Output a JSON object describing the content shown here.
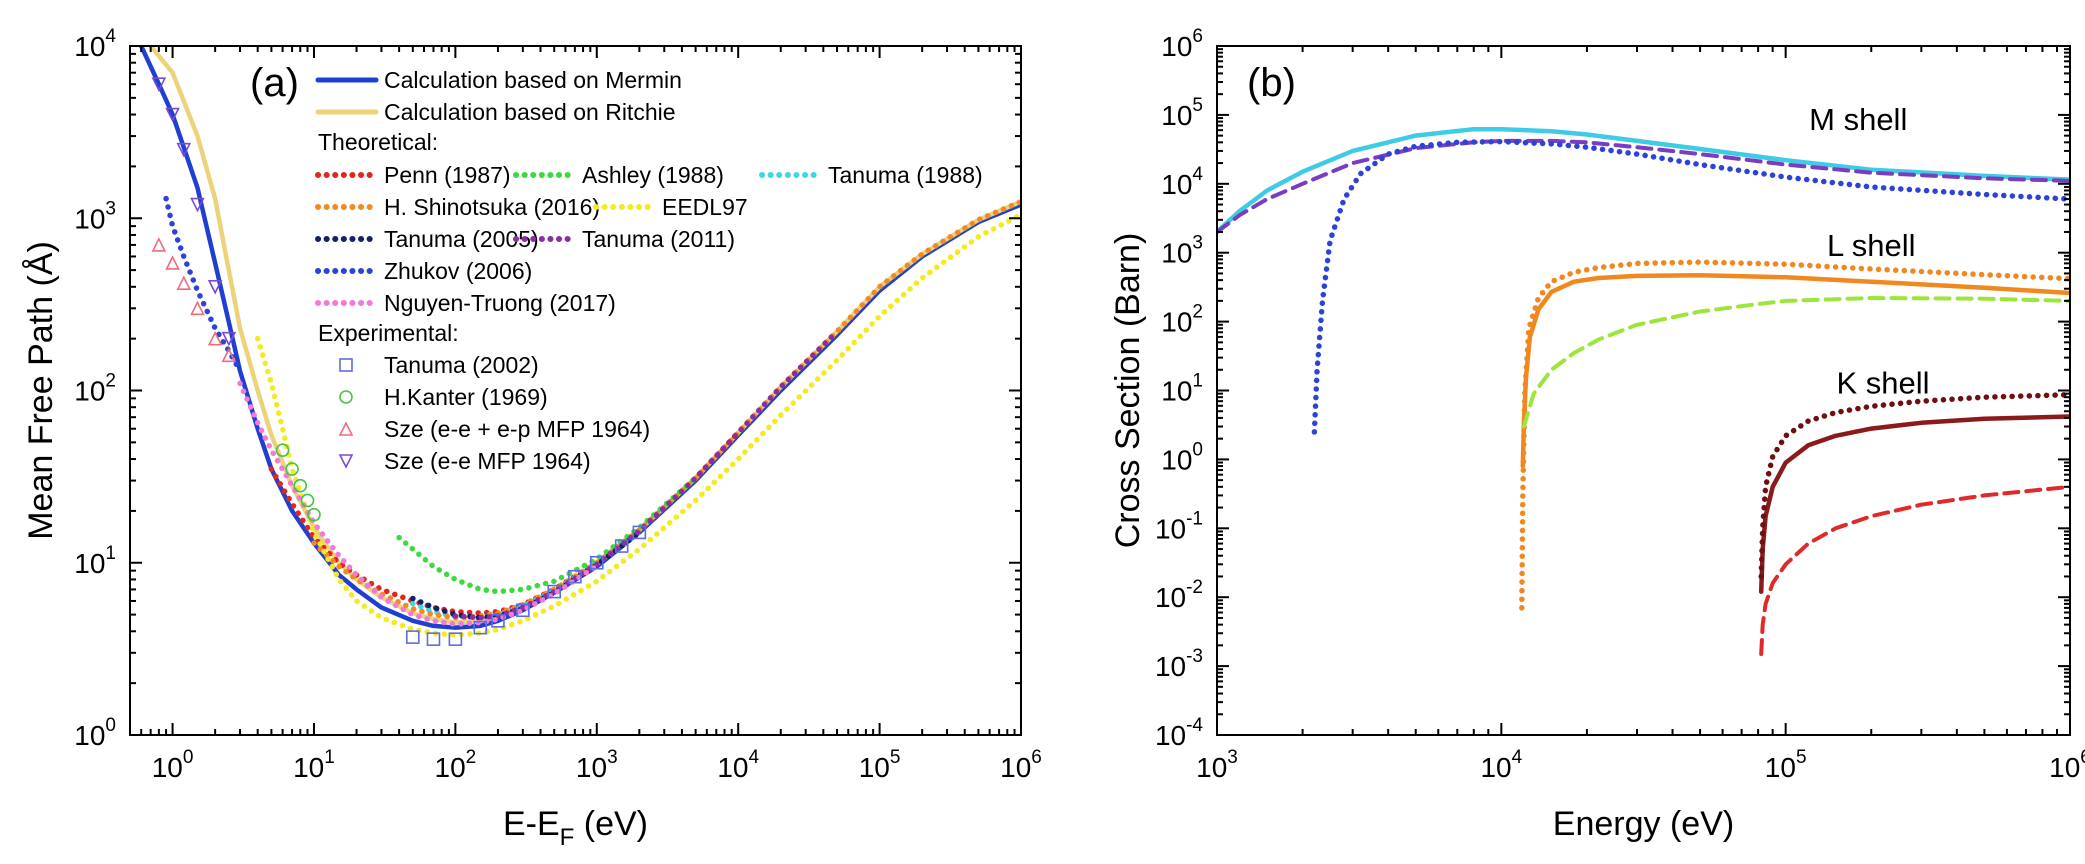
{
  "chart_data": [
    {
      "type": "line",
      "panel_label": "(a)",
      "xlabel": "E-E",
      "xlabel_sub": "F",
      "xlabel_unit": " (eV)",
      "ylabel": "Mean Free Path (Å)",
      "xscale": "log",
      "yscale": "log",
      "xlim": [
        0.5,
        1000000
      ],
      "ylim": [
        1,
        10000
      ],
      "x_ticks": [
        {
          "base": "10",
          "exp": "0"
        },
        {
          "base": "10",
          "exp": "1"
        },
        {
          "base": "10",
          "exp": "2"
        },
        {
          "base": "10",
          "exp": "3"
        },
        {
          "base": "10",
          "exp": "4"
        },
        {
          "base": "10",
          "exp": "5"
        },
        {
          "base": "10",
          "exp": "6"
        }
      ],
      "y_ticks": [
        {
          "base": "10",
          "exp": "0"
        },
        {
          "base": "10",
          "exp": "1"
        },
        {
          "base": "10",
          "exp": "2"
        },
        {
          "base": "10",
          "exp": "3"
        },
        {
          "base": "10",
          "exp": "4"
        }
      ],
      "legend_headers": {
        "theoretical": "Theoretical:",
        "experimental": "Experimental:"
      },
      "series": [
        {
          "name": "Calculation based on Mermin",
          "style": "solid",
          "color": "#1f3fd1",
          "group": "calc",
          "x": [
            0.6,
            0.8,
            1,
            1.5,
            2,
            2.5,
            3,
            4,
            5,
            7,
            10,
            15,
            20,
            30,
            50,
            70,
            100,
            150,
            200,
            300,
            500,
            1000,
            2000,
            5000,
            10000,
            20000,
            50000,
            100000,
            200000,
            500000,
            1000000
          ],
          "y": [
            10000,
            6000,
            4000,
            1500,
            550,
            250,
            130,
            60,
            35,
            20,
            13,
            8.5,
            7,
            5.5,
            4.6,
            4.3,
            4.2,
            4.3,
            4.6,
            5.3,
            6.7,
            9.5,
            15,
            30,
            55,
            100,
            210,
            380,
            600,
            950,
            1200
          ]
        },
        {
          "name": "Calculation based on Ritchie",
          "style": "solid",
          "color": "#ecd37a",
          "group": "calc",
          "x": [
            0.7,
            1,
            1.5,
            2,
            2.5,
            3,
            4,
            5,
            7,
            10,
            15,
            20,
            30,
            50,
            70,
            100,
            150,
            200,
            300,
            500,
            1000,
            2000,
            5000,
            10000,
            20000,
            50000,
            100000,
            200000,
            500000,
            1000000
          ],
          "y": [
            10000,
            7000,
            3000,
            1300,
            500,
            230,
            100,
            55,
            28,
            16,
            10,
            8,
            6.3,
            5.1,
            4.7,
            4.5,
            4.6,
            4.9,
            5.5,
            6.9,
            9.8,
            15.5,
            31,
            57,
            105,
            220,
            400,
            620,
            980,
            1250
          ]
        },
        {
          "name": "Penn (1987)",
          "style": "dotted",
          "color": "#e0261f",
          "group": "theoretical",
          "x": [
            5,
            7,
            10,
            15,
            20,
            30,
            50,
            70,
            100,
            150,
            200,
            300,
            500,
            1000,
            2000,
            5000,
            10000
          ],
          "y": [
            35,
            22,
            14,
            10,
            8.5,
            7,
            6,
            5.5,
            5.2,
            5.1,
            5.2,
            5.7,
            7,
            10,
            15.5,
            31,
            57
          ]
        },
        {
          "name": "Ashley (1988)",
          "style": "dotted",
          "color": "#3ed93e",
          "group": "theoretical",
          "x": [
            40,
            50,
            70,
            100,
            150,
            200,
            300,
            500,
            700,
            1000,
            2000,
            5000
          ],
          "y": [
            14,
            12,
            9.5,
            8,
            7,
            6.8,
            7,
            7.8,
            9,
            10.5,
            16,
            31
          ]
        },
        {
          "name": "Tanuma (1988)",
          "style": "dotted",
          "color": "#3fd6e8",
          "group": "theoretical",
          "x": [
            50,
            70,
            100,
            150,
            200,
            300,
            500,
            1000,
            2000
          ],
          "y": [
            5.8,
            5.2,
            4.9,
            4.8,
            5.0,
            5.6,
            6.9,
            9.8,
            15
          ]
        },
        {
          "name": "H. Shinotsuka (2016)",
          "style": "dotted",
          "color": "#f08a24",
          "group": "theoretical",
          "x": [
            10,
            15,
            20,
            30,
            50,
            70,
            100,
            150,
            200,
            300,
            500,
            1000,
            2000,
            5000,
            10000,
            20000,
            50000,
            100000,
            200000,
            500000,
            1000000
          ],
          "y": [
            13,
            9.5,
            8,
            6.6,
            5.4,
            5,
            4.8,
            4.9,
            5.1,
            5.7,
            7,
            10,
            15.5,
            31,
            57,
            105,
            220,
            400,
            620,
            980,
            1250
          ]
        },
        {
          "name": "EEDL97",
          "style": "dotted",
          "color": "#f5ea22",
          "group": "theoretical",
          "x": [
            4,
            5,
            6,
            7,
            10,
            15,
            20,
            30,
            50,
            70,
            100,
            150,
            200,
            300,
            500,
            1000,
            2000,
            5000,
            10000,
            20000,
            50000,
            100000,
            200000,
            500000,
            1000000
          ],
          "y": [
            200,
            110,
            60,
            35,
            15,
            8,
            6,
            4.8,
            4.1,
            3.9,
            3.8,
            3.9,
            4.1,
            4.6,
            5.6,
            7.8,
            12,
            23,
            40,
            72,
            150,
            270,
            450,
            780,
            1050
          ]
        },
        {
          "name": "Tanuma (2005)",
          "style": "dotted",
          "color": "#141f6e",
          "group": "theoretical",
          "x": [
            50,
            70,
            100,
            150,
            200,
            300,
            500,
            1000,
            2000
          ],
          "y": [
            6.2,
            5.5,
            5.0,
            4.8,
            4.9,
            5.4,
            6.7,
            9.7,
            15
          ]
        },
        {
          "name": "Tanuma (2011)",
          "style": "dotted",
          "color": "#8a2fa3",
          "group": "theoretical",
          "x": [
            100,
            150,
            200,
            300,
            500,
            1000,
            2000,
            5000,
            10000,
            20000,
            50000
          ],
          "y": [
            4.9,
            4.8,
            4.9,
            5.5,
            6.8,
            9.8,
            15.3,
            31,
            57,
            105,
            220
          ]
        },
        {
          "name": "Zhukov (2006)",
          "style": "dotted",
          "color": "#2b43d8",
          "group": "theoretical",
          "x": [
            0.9,
            1,
            1.2,
            1.5,
            2,
            2.5,
            3
          ],
          "y": [
            1300,
            900,
            600,
            380,
            230,
            170,
            130
          ]
        },
        {
          "name": "Nguyen-Truong (2017)",
          "style": "dotted",
          "color": "#f07ad9",
          "group": "theoretical",
          "x": [
            3,
            4,
            5,
            7,
            10,
            15,
            20,
            30,
            50,
            70,
            100,
            150,
            200,
            300,
            500,
            1000
          ],
          "y": [
            110,
            65,
            45,
            28,
            17,
            11,
            8.5,
            6.3,
            5,
            4.6,
            4.4,
            4.5,
            4.7,
            5.3,
            6.6,
            9.6
          ]
        },
        {
          "name": "Tanuma (2002)",
          "style": "marker",
          "marker": "square",
          "color": "#5a6ee0",
          "group": "experimental",
          "x": [
            50,
            70,
            100,
            150,
            200,
            300,
            500,
            700,
            1000,
            1500,
            2000
          ],
          "y": [
            3.7,
            3.6,
            3.6,
            4.2,
            4.6,
            5.3,
            6.8,
            8.3,
            10,
            12.5,
            15
          ]
        },
        {
          "name": "H.Kanter (1969)",
          "style": "marker",
          "marker": "circle",
          "color": "#45c448",
          "group": "experimental",
          "x": [
            6,
            7,
            8,
            9,
            10
          ],
          "y": [
            45,
            35,
            28,
            23,
            19
          ]
        },
        {
          "name": "Sze (e-e + e-p MFP 1964)",
          "style": "marker",
          "marker": "triangle-up",
          "color": "#ef6b7c",
          "group": "experimental",
          "x": [
            0.8,
            1,
            1.2,
            1.5,
            2,
            2.5
          ],
          "y": [
            700,
            550,
            420,
            300,
            200,
            160
          ]
        },
        {
          "name": "Sze (e-e MFP 1964)",
          "style": "marker",
          "marker": "triangle-down",
          "color": "#7a4bd0",
          "group": "experimental",
          "x": [
            0.8,
            1,
            1.2,
            1.5,
            2,
            2.5
          ],
          "y": [
            6000,
            4000,
            2500,
            1200,
            400,
            200
          ]
        }
      ]
    },
    {
      "type": "line",
      "panel_label": "(b)",
      "xlabel": "Energy (eV)",
      "ylabel": "Cross Section (Barn)",
      "xscale": "log",
      "yscale": "log",
      "xlim": [
        1000,
        1000000
      ],
      "ylim": [
        0.0001,
        1000000
      ],
      "x_ticks": [
        {
          "base": "10",
          "exp": "3"
        },
        {
          "base": "10",
          "exp": "4"
        },
        {
          "base": "10",
          "exp": "5"
        },
        {
          "base": "10",
          "exp": "6"
        }
      ],
      "y_ticks": [
        {
          "base": "10",
          "exp": "-4"
        },
        {
          "base": "10",
          "exp": "-3"
        },
        {
          "base": "10",
          "exp": "-2"
        },
        {
          "base": "10",
          "exp": "-1"
        },
        {
          "base": "10",
          "exp": "0"
        },
        {
          "base": "10",
          "exp": "1"
        },
        {
          "base": "10",
          "exp": "2"
        },
        {
          "base": "10",
          "exp": "3"
        },
        {
          "base": "10",
          "exp": "4"
        },
        {
          "base": "10",
          "exp": "5"
        },
        {
          "base": "10",
          "exp": "6"
        }
      ],
      "annotations": [
        {
          "text": "M shell",
          "x": 180000,
          "y": 60000
        },
        {
          "text": "L shell",
          "x": 200000,
          "y": 900
        },
        {
          "text": "K shell",
          "x": 220000,
          "y": 9
        }
      ],
      "series": [
        {
          "style": "solid",
          "color": "#3fcbe6",
          "x": [
            1000,
            1200,
            1500,
            2000,
            3000,
            5000,
            8000,
            10000,
            15000,
            20000,
            30000,
            50000,
            100000,
            200000,
            500000,
            1000000
          ],
          "y": [
            2000,
            4000,
            8000,
            15000,
            30000,
            50000,
            62000,
            62000,
            58000,
            52000,
            42000,
            32000,
            22000,
            16000,
            13000,
            11500
          ]
        },
        {
          "style": "dashed",
          "color": "#7a3dbf",
          "x": [
            1000,
            1200,
            1500,
            2000,
            3000,
            5000,
            8000,
            10000,
            15000,
            20000,
            30000,
            50000,
            100000,
            200000,
            500000,
            1000000
          ],
          "y": [
            2000,
            3500,
            6000,
            10000,
            20000,
            33000,
            40000,
            42000,
            42000,
            40000,
            34000,
            27000,
            19000,
            14500,
            12000,
            11000
          ]
        },
        {
          "style": "dotted",
          "color": "#2b43d8",
          "x": [
            2200,
            2250,
            2350,
            2500,
            2800,
            3200,
            4000,
            5000,
            7000,
            10000,
            15000,
            20000,
            30000,
            50000,
            100000,
            200000,
            500000,
            1000000
          ],
          "y": [
            2.5,
            20,
            200,
            1500,
            6000,
            14000,
            27000,
            35000,
            40000,
            41000,
            38000,
            34000,
            27000,
            19000,
            12500,
            9000,
            7000,
            6000
          ]
        },
        {
          "style": "solid",
          "color": "#f0881f",
          "x": [
            11900,
            12000,
            12200,
            12600,
            13500,
            15000,
            18000,
            22000,
            30000,
            50000,
            100000,
            200000,
            500000,
            1000000
          ],
          "y": [
            0.8,
            3,
            15,
            60,
            150,
            270,
            380,
            430,
            460,
            470,
            440,
            380,
            310,
            260
          ]
        },
        {
          "style": "dotted",
          "color": "#f0881f",
          "x": [
            11800,
            11900,
            12100,
            12500,
            13500,
            15000,
            18000,
            22000,
            30000,
            50000,
            100000,
            200000,
            500000,
            1000000
          ],
          "y": [
            0.007,
            0.3,
            10,
            80,
            220,
            380,
            520,
            610,
            700,
            730,
            680,
            580,
            480,
            420
          ]
        },
        {
          "style": "dashed",
          "color": "#9be63a",
          "x": [
            12000,
            13000,
            15000,
            18000,
            22000,
            30000,
            50000,
            80000,
            100000,
            200000,
            500000,
            1000000
          ],
          "y": [
            3,
            9,
            20,
            35,
            55,
            90,
            140,
            180,
            200,
            220,
            215,
            200
          ]
        },
        {
          "style": "solid",
          "color": "#8b1a1a",
          "x": [
            82000,
            83000,
            85000,
            90000,
            100000,
            120000,
            150000,
            200000,
            300000,
            500000,
            1000000
          ],
          "y": [
            0.012,
            0.05,
            0.15,
            0.4,
            0.9,
            1.6,
            2.2,
            2.8,
            3.4,
            3.9,
            4.2
          ]
        },
        {
          "style": "dotted",
          "color": "#6e1010",
          "x": [
            82000,
            83000,
            85000,
            90000,
            100000,
            120000,
            150000,
            200000,
            300000,
            500000,
            1000000
          ],
          "y": [
            0.02,
            0.1,
            0.4,
            1.1,
            2.2,
            3.6,
            4.8,
            5.9,
            7.0,
            8.0,
            8.7
          ]
        },
        {
          "style": "dashed",
          "color": "#e02a2a",
          "x": [
            82000,
            83000,
            85000,
            90000,
            100000,
            120000,
            150000,
            200000,
            300000,
            500000,
            1000000
          ],
          "y": [
            0.0015,
            0.004,
            0.008,
            0.016,
            0.03,
            0.06,
            0.1,
            0.15,
            0.22,
            0.3,
            0.4
          ]
        }
      ]
    }
  ]
}
